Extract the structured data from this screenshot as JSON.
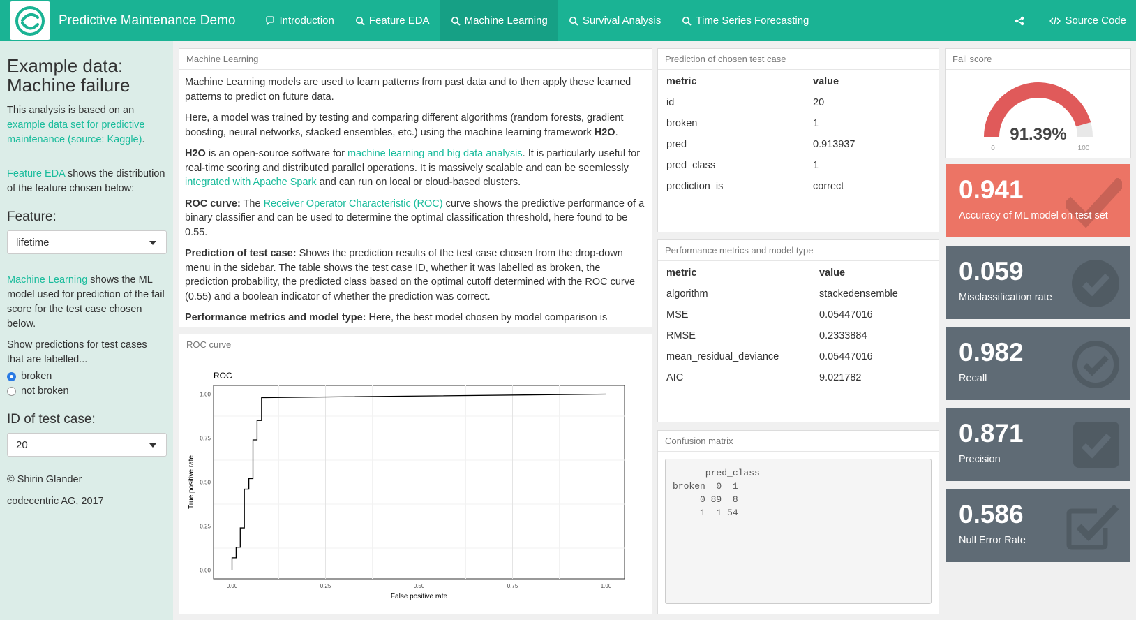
{
  "navbar": {
    "brand": "Predictive Maintenance Demo",
    "tabs": [
      {
        "label": "Introduction",
        "icon": "comment-icon"
      },
      {
        "label": "Feature EDA",
        "icon": "search-icon"
      },
      {
        "label": "Machine Learning",
        "icon": "search-icon",
        "active": true
      },
      {
        "label": "Survival Analysis",
        "icon": "search-icon"
      },
      {
        "label": "Time Series Forecasting",
        "icon": "search-icon"
      }
    ],
    "share_icon": "share-icon",
    "source_code": "Source Code",
    "color": "#1ab394"
  },
  "sidebar": {
    "title": "Example data: Machine failure",
    "intro_pre": "This analysis is based on an ",
    "intro_link": "example data set for predictive maintenance (source: Kaggle)",
    "intro_post": ".",
    "eda_link": "Feature EDA",
    "eda_text": " shows the distribution of the feature chosen below:",
    "feature_label": "Feature:",
    "feature_value": "lifetime",
    "ml_link": "Machine Learning",
    "ml_text": " shows the ML model used for prediction of the fail score for the test case chosen below.",
    "predictions_label": "Show predictions for test cases that are labelled...",
    "radio_options": [
      {
        "label": "broken",
        "checked": true
      },
      {
        "label": "not broken",
        "checked": false
      }
    ],
    "id_label": "ID of test case:",
    "id_value": "20",
    "copyright": "© Shirin Glander",
    "company": "codecentric AG, 2017"
  },
  "ml_box": {
    "header": "Machine Learning",
    "p1": "Machine Learning models are used to learn patterns from past data and to then apply these learned patterns to predict on future data.",
    "p2_pre": "Here, a model was trained by testing and comparing different algorithms (random forests, gradient boosting, neural networks, stacked ensembles, etc.) using the machine learning framework ",
    "p2_bold": "H2O",
    "p2_post": ".",
    "p3_bold": "H2O",
    "p3_a": " is an open-source software for ",
    "p3_link1": "machine learning and big data analysis",
    "p3_b": ". It is particularly useful for real-time scoring and distributed parallel operations. It is massively scalable and can be seemlessly ",
    "p3_link2": "integrated with Apache Spark",
    "p3_c": " and can run on local or cloud-based clusters.",
    "p4_bold": "ROC curve:",
    "p4_a": " The ",
    "p4_link": "Receiver Operator Characteristic (ROC)",
    "p4_b": " curve shows the predictive performance of a binary classifier and can be used to determine the optimal classification threshold, here found to be 0.55.",
    "p5_bold": "Prediction of test case:",
    "p5_text": " Shows the prediction results of the test case chosen from the drop-down menu in the sidebar. The table shows the test case ID, whether it was labelled as broken, the prediction probability, the predicted class based on the optimal cutoff determined with the ROC curve (0.55) and a boolean indicator of whether the prediction was correct.",
    "p6_bold": "Performance metrics and model type:",
    "p6_text": " Here, the best model chosen by model comparison is"
  },
  "roc_box": {
    "header": "ROC curve"
  },
  "chart_data": {
    "type": "line",
    "title": "ROC",
    "xlabel": "False positive rate",
    "ylabel": "True positive rate",
    "xlim": [
      0,
      1
    ],
    "ylim": [
      0,
      1
    ],
    "xticks": [
      "0.00",
      "0.25",
      "0.50",
      "0.75",
      "1.00"
    ],
    "yticks": [
      "0.00",
      "0.25",
      "0.50",
      "0.75",
      "1.00"
    ],
    "grid": true,
    "series": [
      {
        "x": [
          0,
          0,
          0.011,
          0.011,
          0.022,
          0.022,
          0.033,
          0.033,
          0.045,
          0.045,
          0.056,
          0.056,
          0.067,
          0.067,
          0.079,
          0.079,
          1.0
        ],
        "y": [
          0,
          0.07,
          0.07,
          0.13,
          0.13,
          0.24,
          0.24,
          0.46,
          0.46,
          0.52,
          0.52,
          0.74,
          0.74,
          0.85,
          0.85,
          0.98,
          1.0
        ]
      }
    ]
  },
  "prediction_box": {
    "header": "Prediction of chosen test case",
    "columns": [
      "metric",
      "value"
    ],
    "rows": [
      [
        "id",
        "20"
      ],
      [
        "broken",
        "1"
      ],
      [
        "pred",
        "0.913937"
      ],
      [
        "pred_class",
        "1"
      ],
      [
        "prediction_is",
        "correct"
      ]
    ]
  },
  "performance_box": {
    "header": "Performance metrics and model type",
    "columns": [
      "metric",
      "value"
    ],
    "rows": [
      [
        "algorithm",
        "stackedensemble"
      ],
      [
        "MSE",
        "0.05447016"
      ],
      [
        "RMSE",
        "0.2333884"
      ],
      [
        "mean_residual_deviance",
        "0.05447016"
      ],
      [
        "AIC",
        "9.021782"
      ]
    ]
  },
  "confusion_box": {
    "header": "Confusion matrix",
    "text": "      pred_class\nbroken  0  1\n     0 89  8\n     1  1 54"
  },
  "fail_score": {
    "header": "Fail score",
    "value": 91.39,
    "value_text": "91.39%",
    "min": "0",
    "max": "100",
    "color": "#e05a5a"
  },
  "value_boxes": [
    {
      "value": "0.941",
      "label": "Accuracy of ML model on test set",
      "color": "#ec7465",
      "icon": "check-icon"
    },
    {
      "value": "0.059",
      "label": "Misclassification rate",
      "color": "#5f6b75",
      "icon": "check-circle-icon"
    },
    {
      "value": "0.982",
      "label": "Recall",
      "color": "#5f6b75",
      "icon": "check-circle-outline-icon"
    },
    {
      "value": "0.871",
      "label": "Precision",
      "color": "#5f6b75",
      "icon": "check-square-icon"
    },
    {
      "value": "0.586",
      "label": "Null Error Rate",
      "color": "#5f6b75",
      "icon": "check-square-outline-icon"
    }
  ]
}
